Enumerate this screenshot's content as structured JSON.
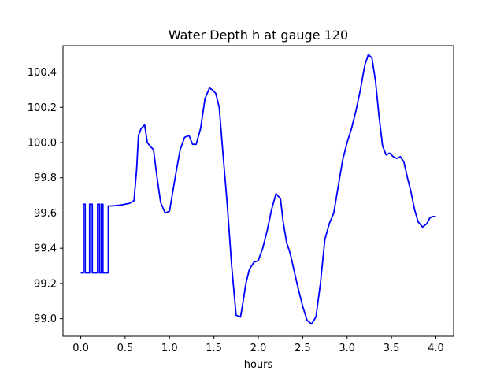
{
  "chart_data": {
    "type": "line",
    "title": "Water Depth h at gauge 120",
    "xlabel": "hours",
    "ylabel": "",
    "xlim": [
      -0.2,
      4.2
    ],
    "ylim": [
      98.9,
      100.55
    ],
    "grid": false,
    "x_ticks": [
      0.0,
      0.5,
      1.0,
      1.5,
      2.0,
      2.5,
      3.0,
      3.5,
      4.0
    ],
    "x_tick_labels": [
      "0.0",
      "0.5",
      "1.0",
      "1.5",
      "2.0",
      "2.5",
      "3.0",
      "3.5",
      "4.0"
    ],
    "y_ticks": [
      99.0,
      99.2,
      99.4,
      99.6,
      99.8,
      100.0,
      100.2,
      100.4
    ],
    "y_tick_labels": [
      "99.0",
      "99.2",
      "99.4",
      "99.6",
      "99.8",
      "100.0",
      "100.2",
      "100.4"
    ],
    "series": [
      {
        "color": "#0000ff",
        "x": [
          0.0,
          0.03,
          0.03,
          0.05,
          0.05,
          0.1,
          0.1,
          0.13,
          0.13,
          0.19,
          0.19,
          0.21,
          0.21,
          0.23,
          0.23,
          0.25,
          0.25,
          0.28,
          0.28,
          0.31,
          0.31,
          0.35,
          0.45,
          0.55,
          0.6,
          0.63,
          0.65,
          0.68,
          0.72,
          0.75,
          0.78,
          0.82,
          0.86,
          0.9,
          0.95,
          1.0,
          1.03,
          1.07,
          1.12,
          1.17,
          1.22,
          1.26,
          1.3,
          1.35,
          1.4,
          1.45,
          1.48,
          1.52,
          1.56,
          1.6,
          1.65,
          1.7,
          1.75,
          1.8,
          1.83,
          1.86,
          1.9,
          1.95,
          2.0,
          2.05,
          2.1,
          2.15,
          2.2,
          2.25,
          2.28,
          2.32,
          2.36,
          2.4,
          2.45,
          2.5,
          2.55,
          2.6,
          2.65,
          2.7,
          2.75,
          2.8,
          2.85,
          2.9,
          2.95,
          3.0,
          3.05,
          3.1,
          3.15,
          3.2,
          3.24,
          3.28,
          3.32,
          3.36,
          3.4,
          3.44,
          3.48,
          3.52,
          3.56,
          3.6,
          3.64,
          3.68,
          3.72,
          3.76,
          3.8,
          3.85,
          3.9,
          3.93,
          3.96,
          4.0
        ],
        "values": [
          99.26,
          99.26,
          99.65,
          99.65,
          99.26,
          99.26,
          99.65,
          99.65,
          99.26,
          99.26,
          99.65,
          99.65,
          99.26,
          99.26,
          99.65,
          99.65,
          99.26,
          99.26,
          99.26,
          99.26,
          99.64,
          99.64,
          99.645,
          99.655,
          99.67,
          99.85,
          100.04,
          100.08,
          100.1,
          100.0,
          99.98,
          99.96,
          99.8,
          99.66,
          99.6,
          99.61,
          99.7,
          99.82,
          99.96,
          100.03,
          100.04,
          99.99,
          99.99,
          100.08,
          100.25,
          100.31,
          100.3,
          100.28,
          100.2,
          99.95,
          99.65,
          99.3,
          99.02,
          99.01,
          99.1,
          99.2,
          99.28,
          99.32,
          99.33,
          99.4,
          99.5,
          99.62,
          99.71,
          99.68,
          99.55,
          99.43,
          99.37,
          99.28,
          99.17,
          99.07,
          98.99,
          98.97,
          99.01,
          99.2,
          99.45,
          99.54,
          99.6,
          99.75,
          99.9,
          100.0,
          100.08,
          100.18,
          100.3,
          100.44,
          100.5,
          100.48,
          100.35,
          100.15,
          99.98,
          99.93,
          99.94,
          99.92,
          99.91,
          99.92,
          99.89,
          99.8,
          99.72,
          99.62,
          99.55,
          99.52,
          99.54,
          99.57,
          99.58,
          99.58
        ]
      }
    ]
  }
}
